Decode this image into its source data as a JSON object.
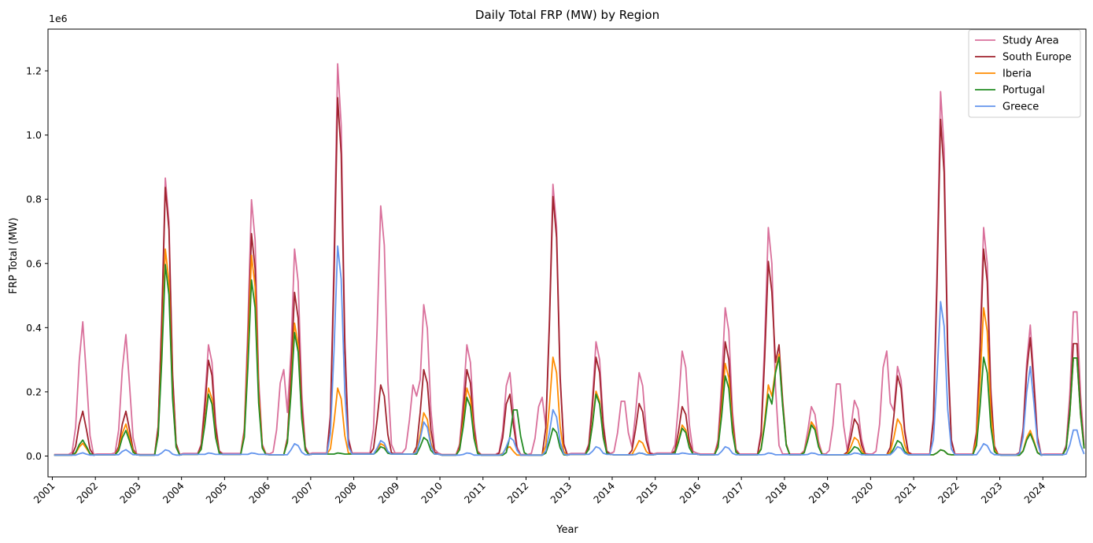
{
  "chart_data": {
    "type": "line",
    "title": "Daily Total FRP (MW) by Region",
    "xlabel": "Year",
    "ylabel": "FRP Total (MW)",
    "y_offset_label": "1e6",
    "xlim": [
      2000.9,
      2025.0
    ],
    "ylim": [
      -0.065,
      1.33
    ],
    "y_ticks": [
      0.0,
      0.2,
      0.4,
      0.6,
      0.8,
      1.0,
      1.2
    ],
    "y_tick_labels": [
      "0.0",
      "0.2",
      "0.4",
      "0.6",
      "0.8",
      "1.0",
      "1.2"
    ],
    "x_ticks": [
      2001,
      2002,
      2003,
      2004,
      2005,
      2006,
      2007,
      2008,
      2009,
      2010,
      2011,
      2012,
      2013,
      2014,
      2015,
      2016,
      2017,
      2018,
      2019,
      2020,
      2021,
      2022,
      2023,
      2024
    ],
    "x_tick_labels": [
      "2001",
      "2002",
      "2003",
      "2004",
      "2005",
      "2006",
      "2007",
      "2008",
      "2009",
      "2010",
      "2011",
      "2012",
      "2013",
      "2014",
      "2015",
      "2016",
      "2017",
      "2018",
      "2019",
      "2020",
      "2021",
      "2022",
      "2023",
      "2024"
    ],
    "grid": false,
    "legend_position": "top-right",
    "baseline": [
      0.003,
      0.004,
      0.003,
      0.005,
      0.005,
      0.004,
      0.006,
      0.006,
      0.006,
      0.003,
      0.003,
      0.003,
      0.005,
      0.004,
      0.006,
      0.004,
      0.004,
      0.004,
      0.004,
      0.004,
      0.004,
      0.004,
      0.003,
      0.004
    ],
    "series": [
      {
        "name": "Study Area",
        "color": "#d9709b",
        "peaks": [
          [
            2001.7,
            0.42
          ],
          [
            2002.7,
            0.38
          ],
          [
            2003.65,
            0.9
          ],
          [
            2004.65,
            0.36
          ],
          [
            2005.65,
            0.83
          ],
          [
            2006.35,
            0.28
          ],
          [
            2006.65,
            0.67
          ],
          [
            2007.65,
            1.27
          ],
          [
            2008.65,
            0.81
          ],
          [
            2009.4,
            0.23
          ],
          [
            2009.65,
            0.49
          ],
          [
            2010.65,
            0.36
          ],
          [
            2011.6,
            0.27
          ],
          [
            2012.35,
            0.19
          ],
          [
            2012.65,
            0.88
          ],
          [
            2013.65,
            0.37
          ],
          [
            2014.25,
            0.19
          ],
          [
            2014.65,
            0.27
          ],
          [
            2015.65,
            0.34
          ],
          [
            2016.65,
            0.48
          ],
          [
            2017.65,
            0.74
          ],
          [
            2018.65,
            0.16
          ],
          [
            2019.25,
            0.25
          ],
          [
            2019.65,
            0.18
          ],
          [
            2020.35,
            0.34
          ],
          [
            2020.65,
            0.29
          ],
          [
            2021.65,
            1.18
          ],
          [
            2022.65,
            0.74
          ],
          [
            2023.7,
            0.41
          ],
          [
            2024.75,
            0.5
          ]
        ]
      },
      {
        "name": "South Europe",
        "color": "#a0232e",
        "peaks": [
          [
            2001.7,
            0.14
          ],
          [
            2002.7,
            0.14
          ],
          [
            2003.65,
            0.87
          ],
          [
            2004.65,
            0.31
          ],
          [
            2005.65,
            0.72
          ],
          [
            2006.65,
            0.53
          ],
          [
            2007.65,
            1.16
          ],
          [
            2008.65,
            0.23
          ],
          [
            2009.65,
            0.28
          ],
          [
            2010.65,
            0.28
          ],
          [
            2011.6,
            0.2
          ],
          [
            2012.65,
            0.84
          ],
          [
            2013.65,
            0.32
          ],
          [
            2014.65,
            0.17
          ],
          [
            2015.65,
            0.16
          ],
          [
            2016.65,
            0.37
          ],
          [
            2017.65,
            0.63
          ],
          [
            2017.85,
            0.36
          ],
          [
            2018.65,
            0.11
          ],
          [
            2019.65,
            0.12
          ],
          [
            2020.65,
            0.26
          ],
          [
            2021.65,
            1.09
          ],
          [
            2022.65,
            0.67
          ],
          [
            2023.7,
            0.37
          ],
          [
            2024.75,
            0.39
          ]
        ]
      },
      {
        "name": "Iberia",
        "color": "#ff8c00",
        "peaks": [
          [
            2001.7,
            0.04
          ],
          [
            2002.7,
            0.1
          ],
          [
            2003.65,
            0.67
          ],
          [
            2004.65,
            0.22
          ],
          [
            2005.65,
            0.65
          ],
          [
            2006.65,
            0.43
          ],
          [
            2007.65,
            0.22
          ],
          [
            2008.65,
            0.04
          ],
          [
            2009.65,
            0.14
          ],
          [
            2010.65,
            0.22
          ],
          [
            2011.6,
            0.03
          ],
          [
            2012.65,
            0.32
          ],
          [
            2013.65,
            0.21
          ],
          [
            2014.65,
            0.05
          ],
          [
            2015.65,
            0.1
          ],
          [
            2016.65,
            0.3
          ],
          [
            2017.65,
            0.23
          ],
          [
            2017.85,
            0.33
          ],
          [
            2018.65,
            0.11
          ],
          [
            2019.65,
            0.06
          ],
          [
            2020.65,
            0.12
          ],
          [
            2021.65,
            0.02
          ],
          [
            2022.65,
            0.48
          ],
          [
            2023.7,
            0.08
          ],
          [
            2024.75,
            0.34
          ]
        ]
      },
      {
        "name": "Portugal",
        "color": "#238b23",
        "peaks": [
          [
            2001.7,
            0.05
          ],
          [
            2002.7,
            0.08
          ],
          [
            2003.65,
            0.62
          ],
          [
            2004.65,
            0.2
          ],
          [
            2005.65,
            0.57
          ],
          [
            2006.65,
            0.4
          ],
          [
            2007.65,
            0.01
          ],
          [
            2008.65,
            0.03
          ],
          [
            2009.65,
            0.06
          ],
          [
            2010.65,
            0.19
          ],
          [
            2011.75,
            0.16
          ],
          [
            2012.65,
            0.09
          ],
          [
            2013.65,
            0.2
          ],
          [
            2014.65,
            0.01
          ],
          [
            2015.65,
            0.09
          ],
          [
            2016.65,
            0.26
          ],
          [
            2017.65,
            0.2
          ],
          [
            2017.85,
            0.32
          ],
          [
            2018.65,
            0.1
          ],
          [
            2019.65,
            0.03
          ],
          [
            2020.65,
            0.05
          ],
          [
            2021.65,
            0.02
          ],
          [
            2022.65,
            0.32
          ],
          [
            2023.7,
            0.07
          ],
          [
            2024.75,
            0.34
          ]
        ]
      },
      {
        "name": "Greece",
        "color": "#6495ed",
        "peaks": [
          [
            2001.7,
            0.01
          ],
          [
            2002.7,
            0.02
          ],
          [
            2003.65,
            0.02
          ],
          [
            2004.65,
            0.01
          ],
          [
            2005.65,
            0.01
          ],
          [
            2006.65,
            0.04
          ],
          [
            2007.65,
            0.68
          ],
          [
            2008.65,
            0.05
          ],
          [
            2009.65,
            0.11
          ],
          [
            2010.65,
            0.01
          ],
          [
            2011.65,
            0.06
          ],
          [
            2012.65,
            0.15
          ],
          [
            2013.65,
            0.03
          ],
          [
            2014.65,
            0.01
          ],
          [
            2015.65,
            0.01
          ],
          [
            2016.65,
            0.03
          ],
          [
            2017.65,
            0.01
          ],
          [
            2018.65,
            0.01
          ],
          [
            2019.65,
            0.01
          ],
          [
            2020.65,
            0.03
          ],
          [
            2021.65,
            0.5
          ],
          [
            2022.65,
            0.04
          ],
          [
            2023.7,
            0.28
          ],
          [
            2024.75,
            0.09
          ]
        ]
      }
    ]
  }
}
